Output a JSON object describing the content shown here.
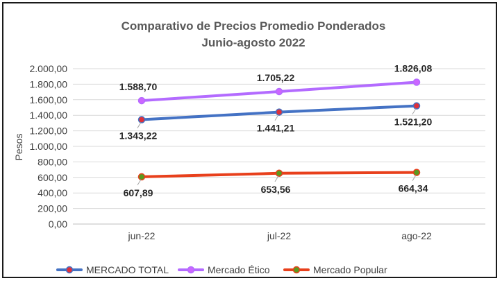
{
  "chart_data": {
    "type": "line",
    "title": "Comparativo de Precios Promedio Ponderados",
    "subtitle": "Junio-agosto 2022",
    "xlabel": "",
    "ylabel": "Pesos",
    "categories": [
      "jun-22",
      "jul-22",
      "ago-22"
    ],
    "ylim": [
      0,
      2000
    ],
    "yticks": [
      "0,00",
      "200,00",
      "400,00",
      "600,00",
      "800,00",
      "1.000,00",
      "1.200,00",
      "1.400,00",
      "1.600,00",
      "1.800,00",
      "2.000,00"
    ],
    "grid": true,
    "legend_position": "bottom",
    "series": [
      {
        "name": "MERCADO TOTAL",
        "values": [
          1343.22,
          1441.21,
          1521.2
        ],
        "labels": [
          "1.343,22",
          "1.441,21",
          "1.521,20"
        ],
        "label_position": "below",
        "line_color": "#4472c4",
        "marker_color": "#e0303a"
      },
      {
        "name": "Mercado Ético",
        "values": [
          1588.7,
          1705.22,
          1826.08
        ],
        "labels": [
          "1.588,70",
          "1.705,22",
          "1.826,08"
        ],
        "label_position": "above",
        "line_color": "#b36bff",
        "marker_color": "#cc66ff"
      },
      {
        "name": "Mercado  Popular",
        "values": [
          607.89,
          653.56,
          664.34
        ],
        "labels": [
          "607,89",
          "653,56",
          "664,34"
        ],
        "label_position": "below",
        "line_color": "#e8401c",
        "marker_color": "#5a9a1e"
      }
    ]
  }
}
